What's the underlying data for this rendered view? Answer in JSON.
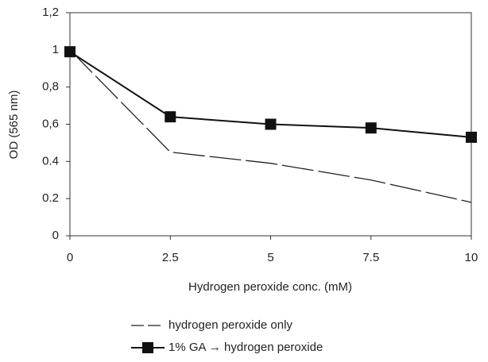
{
  "chart_data": {
    "type": "line",
    "x": [
      0,
      2.5,
      5,
      7.5,
      10
    ],
    "xlim": [
      0,
      10
    ],
    "xticks": [
      0,
      2.5,
      5,
      7.5,
      10
    ],
    "ylim": [
      0,
      1.2
    ],
    "yticks": [
      0,
      0.2,
      0.4,
      {
        "value": 0.6,
        "label": "0,6"
      },
      {
        "value": 0.8,
        "label": "0,8"
      },
      1,
      {
        "value": 1.2,
        "label": "1,2"
      }
    ],
    "xlabel": "Hydrogen peroxide conc. (mM)",
    "ylabel": "OD (565 nm)",
    "series": [
      {
        "name": "hydrogen peroxide only",
        "color": "#222222",
        "dash": true,
        "marker": "none",
        "values": [
          1.0,
          0.45,
          0.39,
          0.3,
          0.18
        ]
      },
      {
        "name": "1% GA → hydrogen peroxide",
        "color": "#111111",
        "dash": false,
        "marker": "square",
        "values": [
          0.99,
          0.64,
          0.6,
          0.58,
          0.53
        ]
      }
    ]
  }
}
